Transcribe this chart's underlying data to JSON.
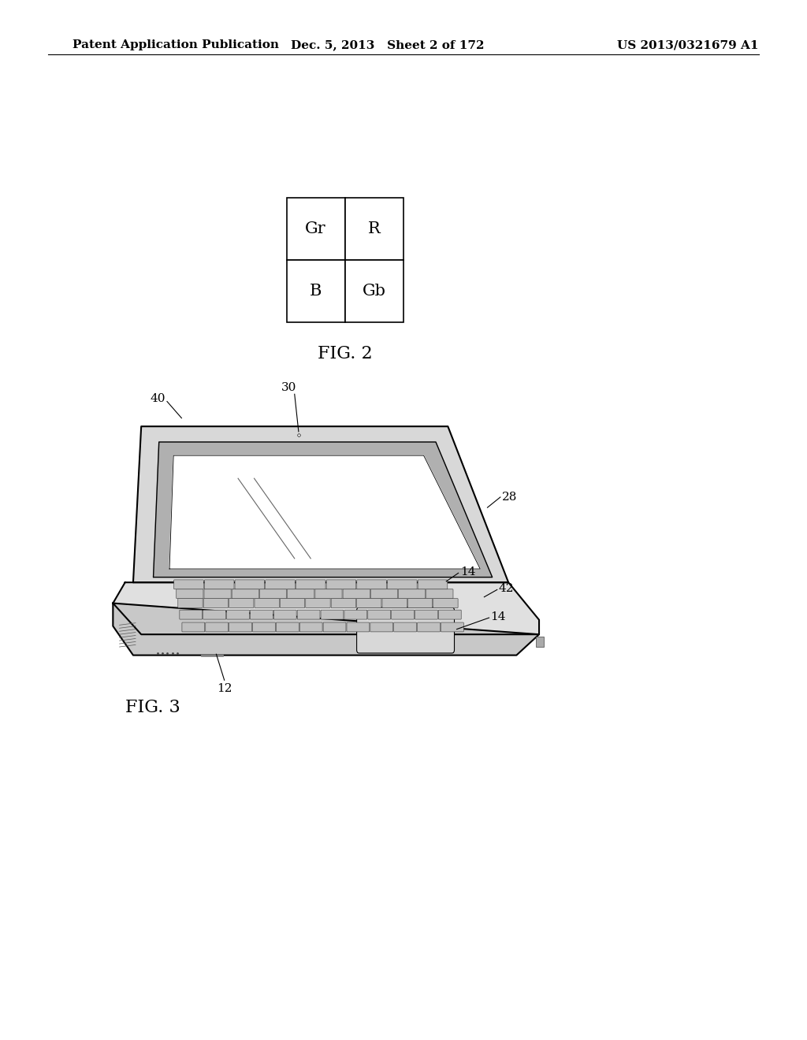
{
  "background_color": "#ffffff",
  "header_left": "Patent Application Publication",
  "header_mid": "Dec. 5, 2013   Sheet 2 of 172",
  "header_right": "US 2013/0321679 A1",
  "header_fontsize": 11,
  "fig2_label": "FIG. 2",
  "fig3_label": "FIG. 3",
  "grid_cells": [
    [
      "Gr",
      "R"
    ],
    [
      "B",
      "Gb"
    ]
  ]
}
